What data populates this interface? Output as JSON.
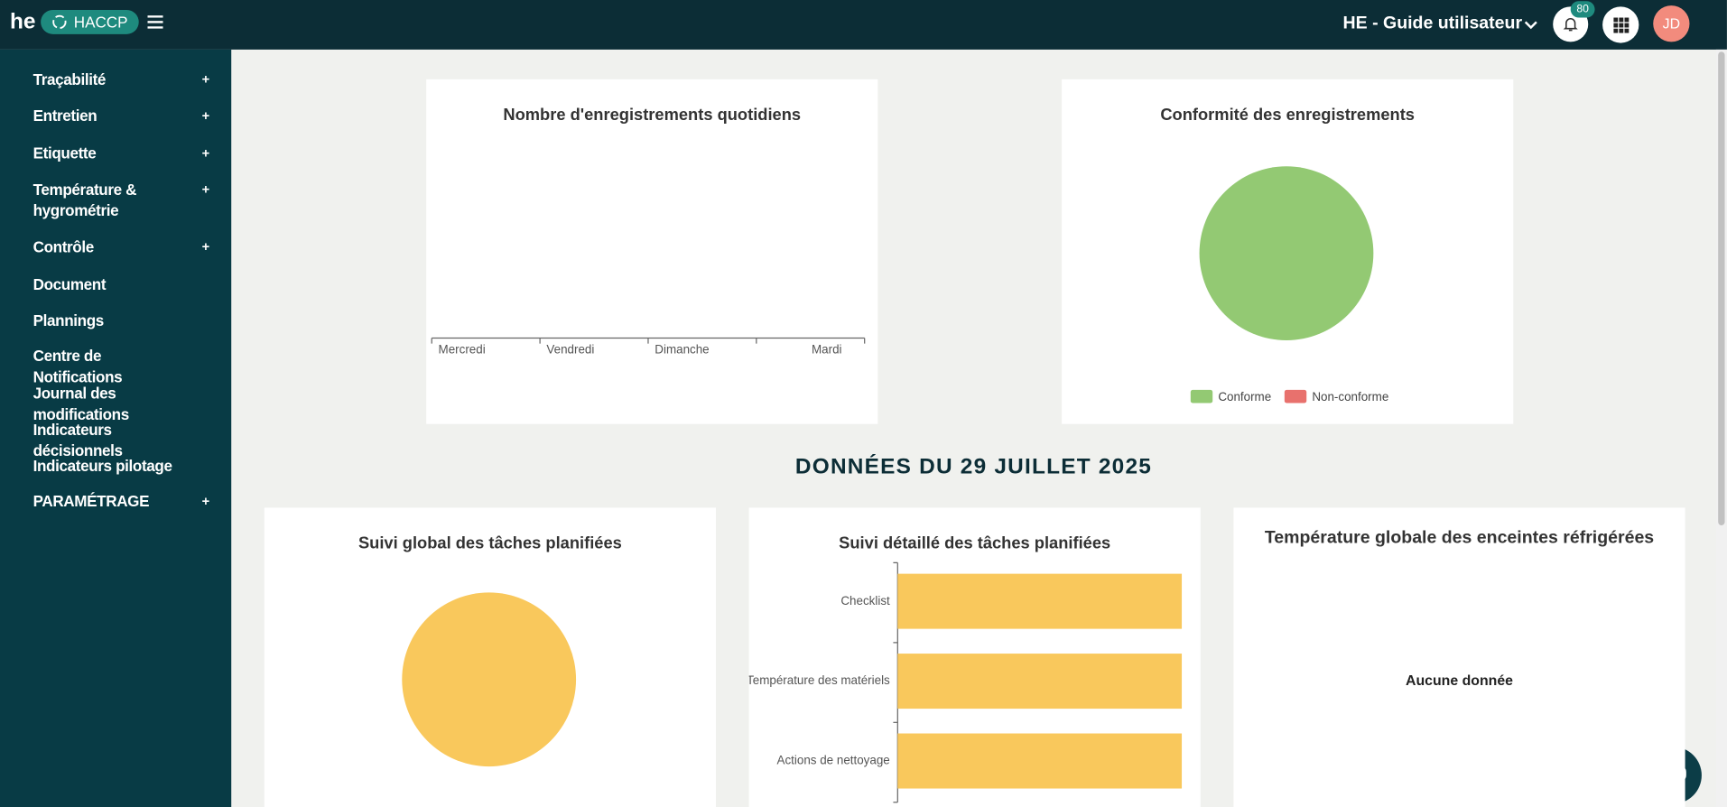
{
  "header": {
    "logo": "he",
    "app": "HACCP",
    "site": "HE - Guide utilisateur",
    "notifications": "80",
    "avatar": "JD"
  },
  "sidebar": {
    "items": [
      {
        "label": "Traçabilité",
        "toggle": "+"
      },
      {
        "label": "Entretien",
        "toggle": "+"
      },
      {
        "label": "Etiquette",
        "toggle": "+"
      },
      {
        "label": "Température & hygrométrie",
        "toggle": "+"
      },
      {
        "label": "Contrôle",
        "toggle": "+"
      },
      {
        "label": "Document"
      },
      {
        "label": "Plannings"
      },
      {
        "label": "Centre de Notifications"
      },
      {
        "label": "Journal des modifications"
      },
      {
        "label": "Indicateurs décisionnels"
      },
      {
        "label": "Indicateurs pilotage"
      },
      {
        "label": "PARAMÉTRAGE",
        "toggle": "+"
      }
    ]
  },
  "section_title": "DONNÉES DU 29 JUILLET 2025",
  "chart_data": [
    {
      "type": "line",
      "title": "Nombre d'enregistrements quotidiens",
      "categories": [
        "Mercredi",
        "Vendredi",
        "Dimanche",
        "Mardi"
      ],
      "series": []
    },
    {
      "type": "pie",
      "title": "Conformité des enregistrements",
      "categories": [
        "Conforme",
        "Non-conforme"
      ],
      "values": [
        100,
        0
      ],
      "colors": [
        "#93c973",
        "#e8716d"
      ],
      "legend": "bottom"
    },
    {
      "type": "pie",
      "title": "Suivi global des tâches planifiées",
      "categories": [
        null
      ],
      "values": [
        100
      ],
      "colors": [
        "#f9c85c"
      ]
    },
    {
      "type": "bar",
      "orientation": "horizontal",
      "title": "Suivi détaillé des tâches planifiées",
      "categories": [
        "Checklist",
        "Température des matériels",
        "Actions de nettoyage"
      ],
      "values": [
        100,
        100,
        100
      ],
      "xlim": [
        0,
        100
      ],
      "color": "#f9c85c"
    },
    {
      "type": "empty",
      "title": "Température globale des enceintes réfrigérées",
      "message": "Aucune donnée"
    }
  ]
}
